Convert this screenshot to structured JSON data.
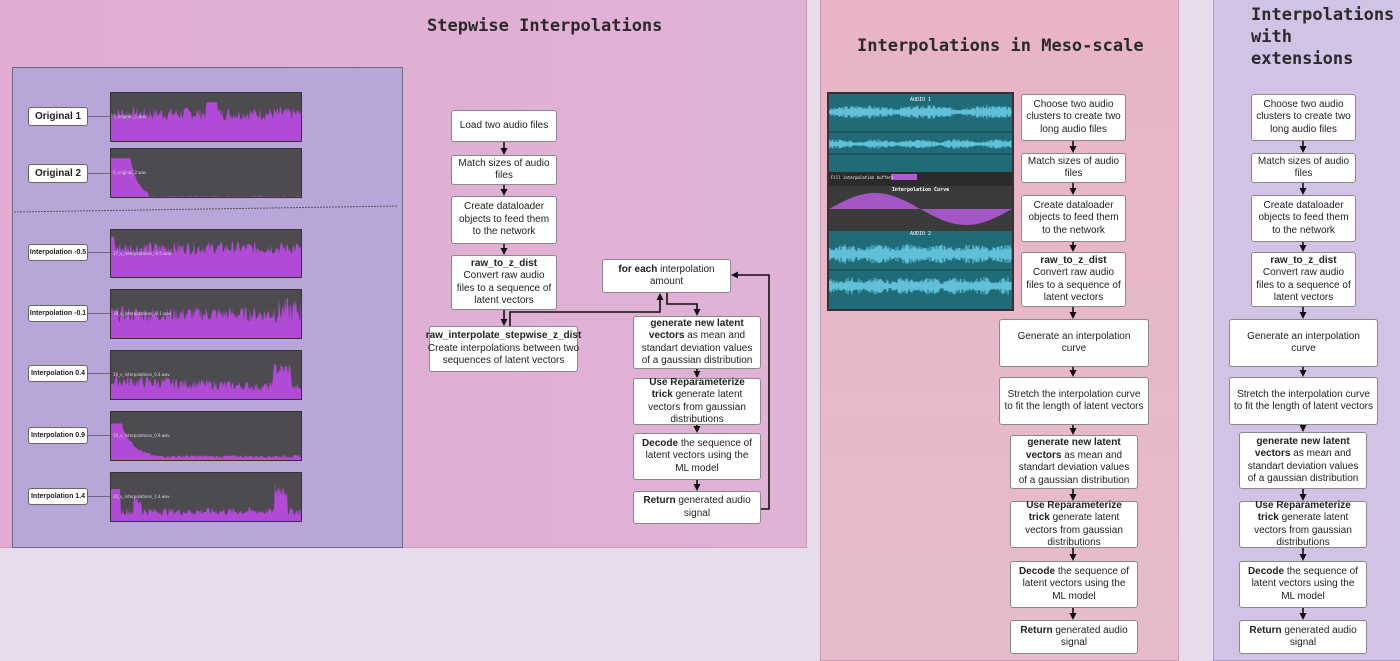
{
  "panels": {
    "stepwise": {
      "title": "Stepwise Interpolations"
    },
    "meso": {
      "title": "Interpolations in Meso-scale"
    },
    "extensions": {
      "title_lines": [
        "Interpolations",
        "with",
        "extensions"
      ]
    }
  },
  "waveforms": [
    {
      "label": "Original 1",
      "file": "0_original_1.wav"
    },
    {
      "label": "Original 2",
      "file": "0_original_2.wav"
    },
    {
      "label": "Interpolation -0.5",
      "file": "17_v_interpolations_-0.5.wav"
    },
    {
      "label": "Interpolation -0.1",
      "file": "18_v_interpolations_-0.1.wav"
    },
    {
      "label": "Interpolation 0.4",
      "file": "19_v_interpolations_0.4.wav"
    },
    {
      "label": "Interpolation 0.9",
      "file": "19_v_interpolations_0.9.wav"
    },
    {
      "label": "Interpolation 1.4",
      "file": "20_v_interpolations_1.4.wav"
    }
  ],
  "flow_stepwise": {
    "load": {
      "text": "Load two audio files"
    },
    "match": {
      "text": "Match sizes of audio files"
    },
    "dataloader": {
      "text": "Create dataloader objects to feed them to the network"
    },
    "raw_to_z": {
      "bold": "raw_to_z_dist",
      "text": "Convert raw audio files to a sequence of latent vectors"
    },
    "interp": {
      "bold": "raw_interpolate_stepwise_z_dist",
      "text": "Create interpolations between two sequences of latent vectors"
    },
    "for_each": {
      "bold": "for each",
      "text": " interpolation amount"
    },
    "gen_latent": {
      "bold": "generate new latent vectors",
      "text": " as mean and standart deviation values of a gaussian distribution"
    },
    "reparam": {
      "bold": "Use Reparameterize trick",
      "text": " generate latent vectors from gaussian distributions"
    },
    "decode": {
      "bold": "Decode",
      "text": " the sequence of latent vectors using the ML model"
    },
    "return": {
      "bold": "Return",
      "text": " generated audio signal"
    }
  },
  "flow_meso": {
    "choose": {
      "text": "Choose two audio clusters to create two long audio files"
    },
    "match": {
      "text": "Match sizes of audio files"
    },
    "dataloader": {
      "text": "Create dataloader objects to feed them to the network"
    },
    "raw_to_z": {
      "bold": "raw_to_z_dist",
      "text": "Convert raw audio files to a sequence of latent vectors"
    },
    "curve": {
      "text": "Generate an interpolation curve"
    },
    "stretch": {
      "text": "Stretch the interpolation curve to fit the length of latent vectors"
    },
    "gen_latent": {
      "bold": "generate new latent vectors",
      "text": " as mean and standart deviation values of a gaussian distribution"
    },
    "reparam": {
      "bold": "Use Reparameterize trick",
      "text": " generate latent vectors from gaussian distributions"
    },
    "decode": {
      "bold": "Decode",
      "text": " the sequence of latent vectors using the ML model"
    },
    "return": {
      "bold": "Return",
      "text": " generated audio signal"
    }
  },
  "flow_ext": {
    "choose": {
      "text": "Choose two audio clusters to create two long audio files"
    },
    "match": {
      "text": "Match sizes of audio files"
    },
    "dataloader": {
      "text": "Create dataloader objects to feed them to the network"
    },
    "raw_to_z": {
      "bold": "raw_to_z_dist",
      "text": "Convert raw audio files to a sequence of latent vectors"
    },
    "curve": {
      "text": "Generate an interpolation curve"
    },
    "stretch": {
      "text": "Stretch the interpolation curve to fit the length of latent vectors"
    },
    "gen_latent": {
      "bold": "generate new latent vectors",
      "text": " as mean and standart deviation values of a gaussian distribution"
    },
    "reparam": {
      "bold": "Use Reparameterize trick",
      "text": " generate latent vectors from gaussian distributions"
    },
    "decode": {
      "bold": "Decode",
      "text": " the sequence of latent vectors using the ML model"
    },
    "return": {
      "bold": "Return",
      "text": " generated audio signal"
    }
  },
  "meso_screenshot": {
    "audio1_label": "AUDIO 1",
    "audio2_label": "AUDIO 2",
    "curve_label": "Interpolation Curve",
    "buffer_label": "Fill interpolation buffers",
    "colors": {
      "bg": "#1f6b78",
      "wave": "#5fc0d8",
      "curve": "#b05ad6"
    }
  },
  "colors": {
    "stepwise_bg": "#e0b0d0",
    "wave_fill": "#b24ad8",
    "meso_bg": "#e6b7c8",
    "ext_bg": "#d3c4e6",
    "inner_panel": "#b9a8d8"
  }
}
